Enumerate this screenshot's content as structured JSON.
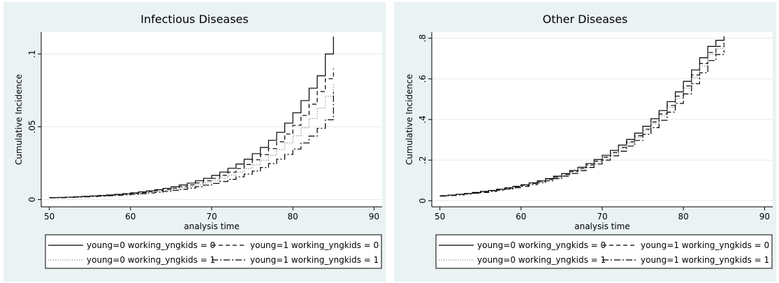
{
  "chart_data": [
    {
      "type": "line",
      "title": "Infectious Diseases",
      "xlabel": "analysis time",
      "ylabel": "Cumulative Incidence",
      "xlim": [
        49,
        91
      ],
      "ylim": [
        -0.005,
        0.115
      ],
      "xticks": [
        50,
        60,
        70,
        80,
        90
      ],
      "xtick_labels": [
        "50",
        "60",
        "70",
        "80",
        "90"
      ],
      "yticks": [
        0,
        0.05,
        0.1
      ],
      "ytick_labels": [
        "0",
        ".05",
        ".1"
      ],
      "grid": true,
      "step": true,
      "legend": {
        "position": "bottom",
        "columns": 2
      },
      "series": [
        {
          "name": "young=0 working_yngkids = 0",
          "style": "solid",
          "x": [
            50,
            51,
            52,
            53,
            54,
            55,
            56,
            57,
            58,
            59,
            60,
            61,
            62,
            63,
            64,
            65,
            66,
            67,
            68,
            69,
            70,
            71,
            72,
            73,
            74,
            75,
            76,
            77,
            78,
            79,
            80,
            81,
            82,
            83,
            84,
            85
          ],
          "y": [
            0.0013,
            0.0015,
            0.0017,
            0.0019,
            0.0022,
            0.0025,
            0.0028,
            0.0032,
            0.0036,
            0.0041,
            0.0046,
            0.0053,
            0.006,
            0.0068,
            0.0077,
            0.0088,
            0.01,
            0.0113,
            0.0129,
            0.0146,
            0.0166,
            0.0189,
            0.0215,
            0.0244,
            0.0277,
            0.0315,
            0.0358,
            0.0407,
            0.0462,
            0.0525,
            0.0596,
            0.068,
            0.0765,
            0.085,
            0.1,
            0.112
          ]
        },
        {
          "name": "young=1 working_yngkids = 0",
          "style": "dash",
          "x": [
            50,
            51,
            52,
            53,
            54,
            55,
            56,
            57,
            58,
            59,
            60,
            61,
            62,
            63,
            64,
            65,
            66,
            67,
            68,
            69,
            70,
            71,
            72,
            73,
            74,
            75,
            76,
            77,
            78,
            79,
            80,
            81,
            82,
            83,
            84,
            85
          ],
          "y": [
            0.0013,
            0.0014,
            0.0016,
            0.0018,
            0.002,
            0.0023,
            0.0026,
            0.0029,
            0.0033,
            0.0037,
            0.0042,
            0.0048,
            0.0054,
            0.0061,
            0.0069,
            0.0078,
            0.0089,
            0.0101,
            0.0114,
            0.0129,
            0.0146,
            0.0166,
            0.0188,
            0.0213,
            0.0241,
            0.0273,
            0.0309,
            0.035,
            0.0397,
            0.045,
            0.051,
            0.0578,
            0.0655,
            0.0742,
            0.083,
            0.09
          ]
        },
        {
          "name": "young=0 working_yngkids = 1",
          "style": "dot",
          "x": [
            50,
            51,
            52,
            53,
            54,
            55,
            56,
            57,
            58,
            59,
            60,
            61,
            62,
            63,
            64,
            65,
            66,
            67,
            68,
            69,
            70,
            71,
            72,
            73,
            74,
            75,
            76,
            77,
            78,
            79,
            80,
            81,
            82,
            83,
            84,
            85
          ],
          "y": [
            0.0012,
            0.0014,
            0.0016,
            0.0018,
            0.002,
            0.0023,
            0.0025,
            0.0028,
            0.0032,
            0.0036,
            0.004,
            0.0045,
            0.0051,
            0.0057,
            0.0064,
            0.0072,
            0.0081,
            0.0091,
            0.0103,
            0.0116,
            0.0131,
            0.0148,
            0.0167,
            0.0188,
            0.0212,
            0.0239,
            0.027,
            0.0305,
            0.0344,
            0.0388,
            0.0438,
            0.0494,
            0.0557,
            0.0628,
            0.071,
            0.08
          ]
        },
        {
          "name": "young=1 working_yngkids = 1",
          "style": "dashdot",
          "x": [
            50,
            51,
            52,
            53,
            54,
            55,
            56,
            57,
            58,
            59,
            60,
            61,
            62,
            63,
            64,
            65,
            66,
            67,
            68,
            69,
            70,
            71,
            72,
            73,
            74,
            75,
            76,
            77,
            78,
            79,
            80,
            81,
            82,
            83,
            84,
            85
          ],
          "y": [
            0.0012,
            0.0013,
            0.0015,
            0.0017,
            0.0019,
            0.0021,
            0.0023,
            0.0026,
            0.0029,
            0.0032,
            0.0036,
            0.004,
            0.0045,
            0.005,
            0.0056,
            0.0063,
            0.007,
            0.0079,
            0.0088,
            0.0099,
            0.0111,
            0.0124,
            0.0139,
            0.0156,
            0.0175,
            0.0196,
            0.022,
            0.0247,
            0.0277,
            0.031,
            0.0347,
            0.0389,
            0.0436,
            0.0489,
            0.0548,
            0.074
          ]
        }
      ]
    },
    {
      "type": "line",
      "title": "Other Diseases",
      "xlabel": "analysis time",
      "ylabel": "Cumulative Incidence",
      "xlim": [
        49,
        91
      ],
      "ylim": [
        -0.03,
        0.83
      ],
      "xticks": [
        50,
        60,
        70,
        80,
        90
      ],
      "xtick_labels": [
        "50",
        "60",
        "70",
        "80",
        "90"
      ],
      "yticks": [
        0,
        0.2,
        0.4,
        0.6,
        0.8
      ],
      "ytick_labels": [
        "0",
        ".2",
        ".4",
        ".6",
        ".8"
      ],
      "grid": true,
      "step": true,
      "legend": {
        "position": "bottom",
        "columns": 2
      },
      "series": [
        {
          "name": "young=0 working_yngkids = 0",
          "style": "solid",
          "x": [
            50,
            51,
            52,
            53,
            54,
            55,
            56,
            57,
            58,
            59,
            60,
            61,
            62,
            63,
            64,
            65,
            66,
            67,
            68,
            69,
            70,
            71,
            72,
            73,
            74,
            75,
            76,
            77,
            78,
            79,
            80,
            81,
            82,
            83,
            84,
            85
          ],
          "y": [
            0.025,
            0.028,
            0.032,
            0.036,
            0.041,
            0.046,
            0.051,
            0.057,
            0.064,
            0.071,
            0.079,
            0.088,
            0.098,
            0.109,
            0.121,
            0.134,
            0.149,
            0.165,
            0.183,
            0.203,
            0.224,
            0.248,
            0.274,
            0.302,
            0.333,
            0.367,
            0.404,
            0.444,
            0.488,
            0.536,
            0.588,
            0.644,
            0.704,
            0.76,
            0.79,
            0.81
          ]
        },
        {
          "name": "young=1 working_yngkids = 0",
          "style": "dash",
          "x": [
            50,
            51,
            52,
            53,
            54,
            55,
            56,
            57,
            58,
            59,
            60,
            61,
            62,
            63,
            64,
            65,
            66,
            67,
            68,
            69,
            70,
            71,
            72,
            73,
            74,
            75,
            76,
            77,
            78,
            79,
            80,
            81,
            82,
            83,
            84,
            85
          ],
          "y": [
            0.024,
            0.027,
            0.031,
            0.035,
            0.039,
            0.044,
            0.049,
            0.055,
            0.061,
            0.068,
            0.076,
            0.085,
            0.094,
            0.105,
            0.116,
            0.129,
            0.143,
            0.159,
            0.176,
            0.195,
            0.215,
            0.238,
            0.263,
            0.29,
            0.32,
            0.352,
            0.388,
            0.427,
            0.469,
            0.515,
            0.565,
            0.619,
            0.676,
            0.73,
            0.76,
            0.79
          ]
        },
        {
          "name": "young=0 working_yngkids = 1",
          "style": "dot",
          "x": [
            50,
            51,
            52,
            53,
            54,
            55,
            56,
            57,
            58,
            59,
            60,
            61,
            62,
            63,
            64,
            65,
            66,
            67,
            68,
            69,
            70,
            71,
            72,
            73,
            74,
            75,
            76,
            77,
            78,
            79,
            80,
            81,
            82,
            83,
            84,
            85
          ],
          "y": [
            0.024,
            0.027,
            0.03,
            0.034,
            0.038,
            0.043,
            0.048,
            0.054,
            0.06,
            0.067,
            0.075,
            0.083,
            0.093,
            0.103,
            0.114,
            0.127,
            0.141,
            0.156,
            0.173,
            0.191,
            0.211,
            0.233,
            0.258,
            0.284,
            0.313,
            0.345,
            0.38,
            0.418,
            0.46,
            0.505,
            0.554,
            0.607,
            0.664,
            0.72,
            0.75,
            0.77
          ]
        },
        {
          "name": "young=1 working_yngkids = 1",
          "style": "dashdot",
          "x": [
            50,
            51,
            52,
            53,
            54,
            55,
            56,
            57,
            58,
            59,
            60,
            61,
            62,
            63,
            64,
            65,
            66,
            67,
            68,
            69,
            70,
            71,
            72,
            73,
            74,
            75,
            76,
            77,
            78,
            79,
            80,
            81,
            82,
            83,
            84,
            85
          ],
          "y": [
            0.023,
            0.026,
            0.029,
            0.033,
            0.037,
            0.041,
            0.046,
            0.051,
            0.057,
            0.064,
            0.071,
            0.079,
            0.088,
            0.098,
            0.109,
            0.121,
            0.134,
            0.148,
            0.164,
            0.181,
            0.2,
            0.221,
            0.244,
            0.269,
            0.297,
            0.327,
            0.36,
            0.396,
            0.436,
            0.479,
            0.526,
            0.576,
            0.63,
            0.69,
            0.72,
            0.74
          ]
        }
      ]
    }
  ]
}
